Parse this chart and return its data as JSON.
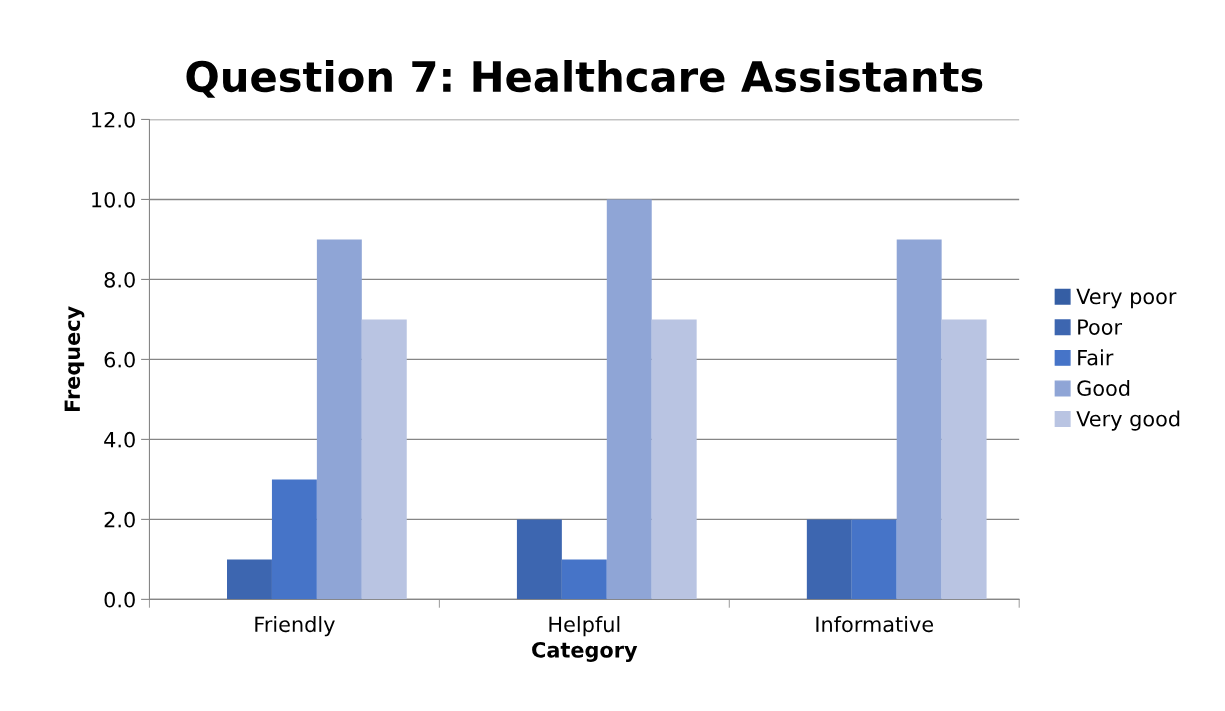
{
  "chart_data": {
    "type": "bar",
    "title": "Question 7: Healthcare Assistants",
    "xlabel": "Category",
    "ylabel": "Frequecy",
    "categories": [
      "Friendly",
      "Helpful",
      "Informative"
    ],
    "series": [
      {
        "name": "Very poor",
        "color": "#355ea4",
        "values": [
          0,
          0,
          0
        ]
      },
      {
        "name": "Poor",
        "color": "#3d66b0",
        "values": [
          1,
          2,
          2
        ]
      },
      {
        "name": "Fair",
        "color": "#4674c8",
        "values": [
          3,
          1,
          2
        ]
      },
      {
        "name": "Good",
        "color": "#8fa5d6",
        "values": [
          9,
          10,
          9
        ]
      },
      {
        "name": "Very good",
        "color": "#b9c4e2",
        "values": [
          7,
          7,
          7
        ]
      }
    ],
    "ylim": [
      0,
      12
    ],
    "yticks": [
      {
        "value": 0,
        "label": "0.0"
      },
      {
        "value": 2,
        "label": "2.0"
      },
      {
        "value": 4,
        "label": "4.0"
      },
      {
        "value": 6,
        "label": "6.0"
      },
      {
        "value": 8,
        "label": "8.0"
      },
      {
        "value": 10,
        "label": "10.0"
      },
      {
        "value": 12,
        "label": "12.0"
      }
    ],
    "grid": "y",
    "legend": "right"
  }
}
